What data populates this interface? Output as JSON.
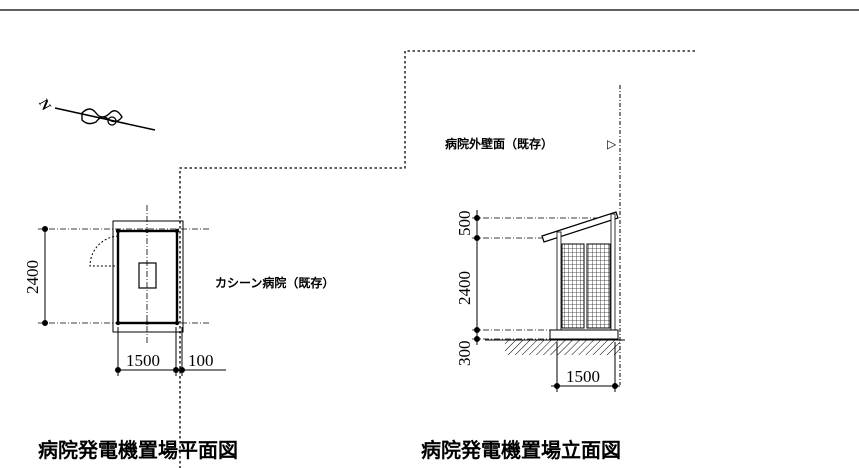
{
  "plan": {
    "north_label": "N",
    "dim_height": "2400",
    "dim_width": "1500",
    "dim_gap": "100",
    "building_label": "カシーン病院（既存）",
    "title": "病院発電機置場平面図"
  },
  "elevation": {
    "wall_label": "病院外壁面（既存）",
    "wall_marker": "▷",
    "dim_top": "500",
    "dim_mid": "2400",
    "dim_bottom": "300",
    "dim_width": "1500",
    "title": "病院発電機置場立面図"
  }
}
